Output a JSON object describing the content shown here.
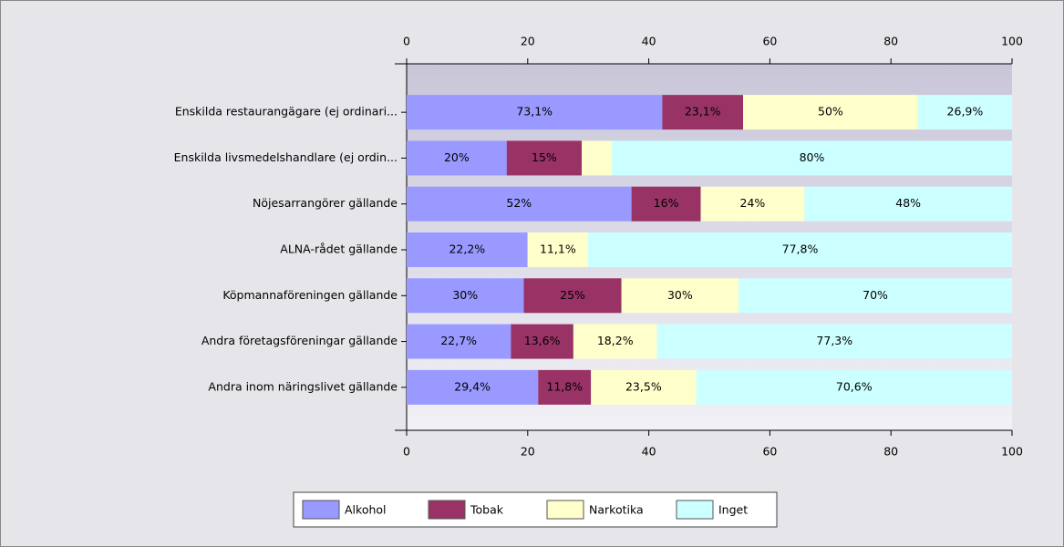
{
  "chart_data": {
    "type": "bar",
    "orientation": "horizontal",
    "stacking": "percent",
    "categories": [
      "Enskilda restaurangägare (ej ordinari...",
      "Enskilda livsmedelshandlare (ej ordin...",
      "Nöjesarrangörer gällande",
      "ALNA-rådet gällande",
      "Köpmannaföreningen gällande",
      "Andra företagsföreningar gällande",
      "Andra inom näringslivet gällande"
    ],
    "series": [
      {
        "name": "Alkohol",
        "color": "#9999ff",
        "values": [
          73.1,
          20,
          52,
          22.2,
          30,
          22.7,
          29.4
        ],
        "value_labels": [
          "73,1%",
          "20%",
          "52%",
          "22,2%",
          "30%",
          "22,7%",
          "29,4%"
        ]
      },
      {
        "name": "Tobak",
        "color": "#993366",
        "values": [
          23.1,
          15,
          16,
          0,
          25,
          13.6,
          11.8
        ],
        "value_labels": [
          "23,1%",
          "15%",
          "16%",
          null,
          "25%",
          "13,6%",
          "11,8%"
        ]
      },
      {
        "name": "Narkotika",
        "color": "#ffffcc",
        "values": [
          50,
          6,
          24,
          11.1,
          30,
          18.2,
          23.5
        ],
        "value_labels": [
          "50%",
          null,
          "24%",
          "11,1%",
          "30%",
          "18,2%",
          "23,5%"
        ]
      },
      {
        "name": "Inget",
        "color": "#ccffff",
        "values": [
          26.9,
          80,
          48,
          77.8,
          70,
          77.3,
          70.6
        ],
        "value_labels": [
          "26,9%",
          "80%",
          "48%",
          "77,8%",
          "70%",
          "77,3%",
          "70,6%"
        ]
      }
    ],
    "xlim": [
      0,
      100
    ],
    "xticks": [
      0,
      20,
      40,
      60,
      80,
      100
    ],
    "legend": "bottom"
  }
}
